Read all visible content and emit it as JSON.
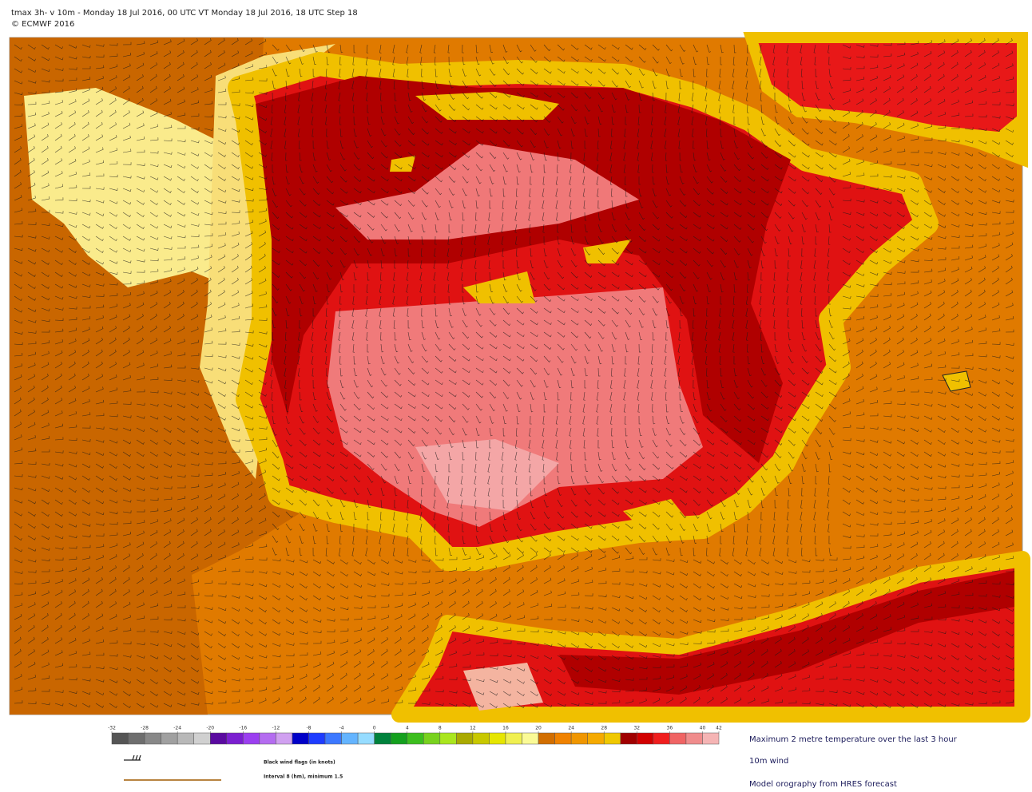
{
  "header": {
    "title": "tmax 3h- v 10m - Monday 18 Jul 2016, 00 UTC VT Monday 18 Jul 2016, 18 UTC Step 18",
    "copyright": "© ECMWF 2016"
  },
  "colorbar": {
    "ticks": [
      -32,
      -28,
      -24,
      -20,
      -16,
      -12,
      -8,
      -4,
      0,
      4,
      8,
      12,
      16,
      20,
      24,
      28,
      32,
      36,
      40,
      42
    ],
    "colors": [
      "#555555",
      "#6e6e6e",
      "#888888",
      "#a0a0a0",
      "#b8b8b8",
      "#d0d0d0",
      "#5a0aa0",
      "#7b1fd0",
      "#9b3ff0",
      "#b46cf0",
      "#d0a0f0",
      "#0000c8",
      "#1e3cff",
      "#3c78ff",
      "#64b4ff",
      "#96dcff",
      "#00823c",
      "#14a01e",
      "#3cbe1e",
      "#78d21e",
      "#aae61e",
      "#aaaa00",
      "#c8c800",
      "#e6e600",
      "#f0f050",
      "#fafa96",
      "#d26e00",
      "#f08200",
      "#f09600",
      "#f5aa00",
      "#f0c800",
      "#a00000",
      "#d20000",
      "#f01e1e",
      "#f06464",
      "#f08c8c",
      "#f5b4b4"
    ]
  },
  "legend": {
    "wind_flags": "Black wind flags (in knots)",
    "orography_interval": "Interval 8 (hm), minimum 1.5",
    "items": [
      "Maximum 2 metre temperature over the last 3 hour",
      "10m wind",
      "Model orography  from HRES forecast"
    ]
  }
}
